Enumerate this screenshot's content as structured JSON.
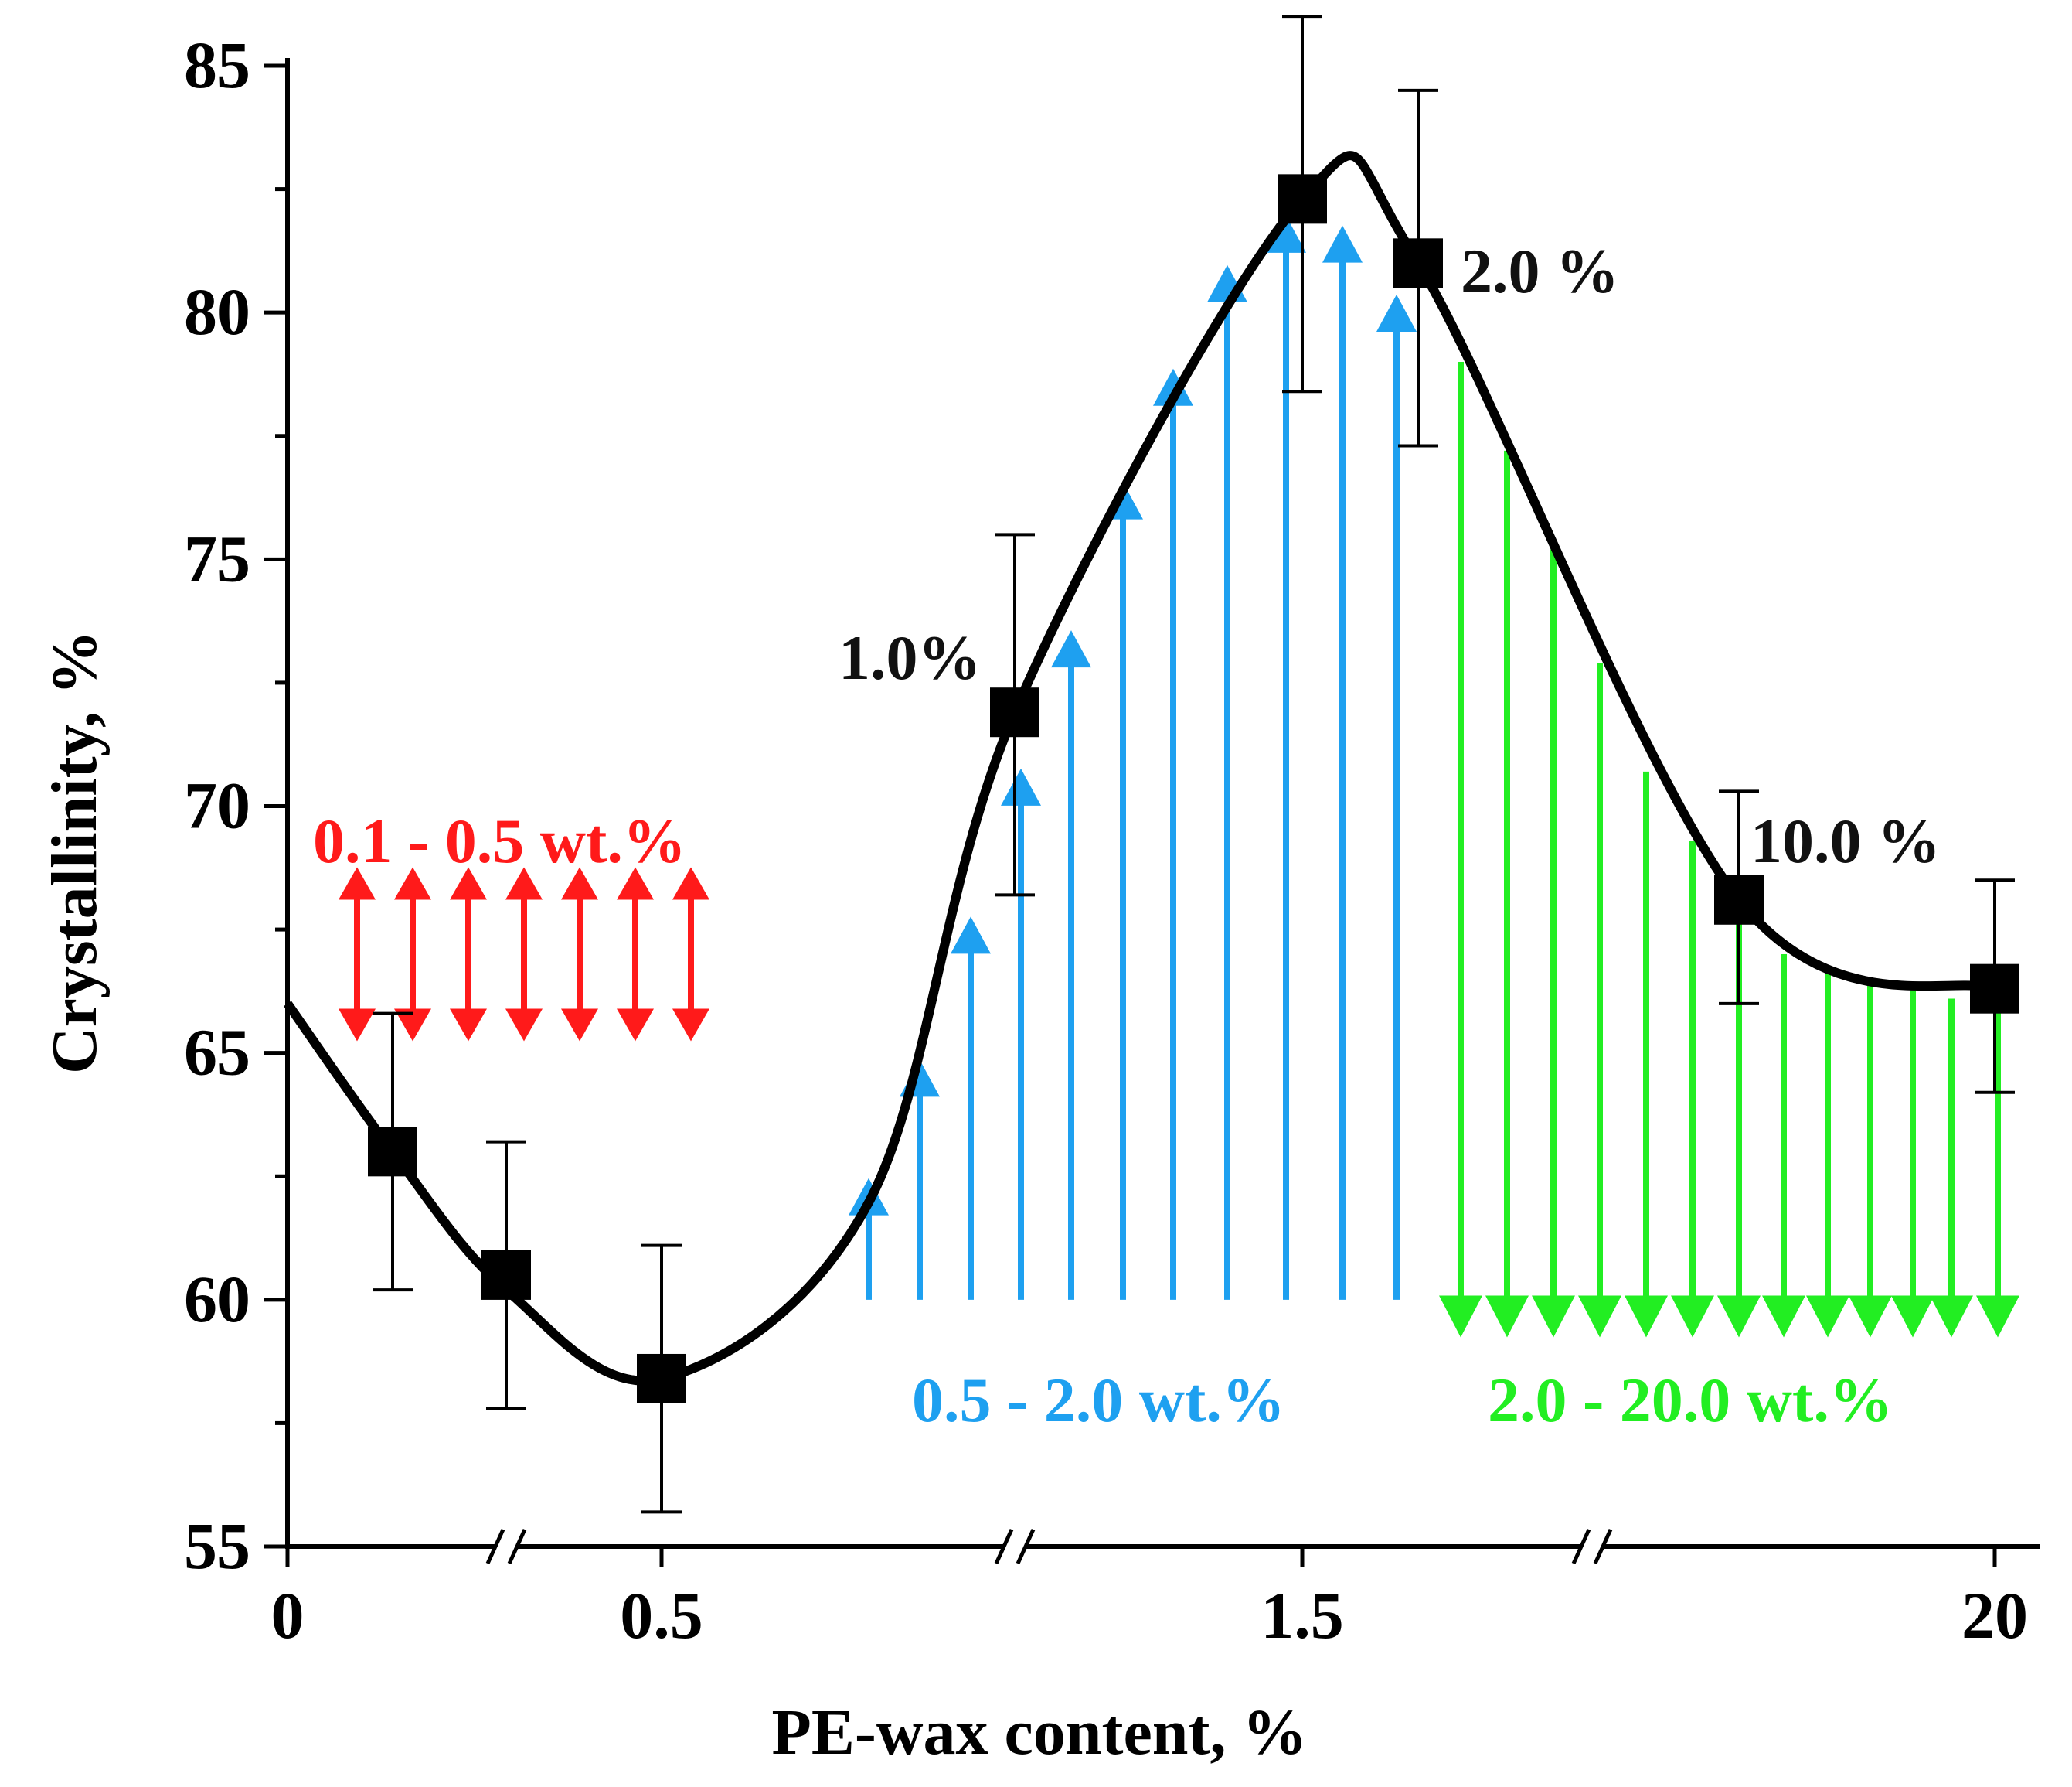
{
  "chart_data": {
    "type": "scatter",
    "title": "",
    "xlabel": "PE-wax content, %",
    "ylabel": "Crystallinity, %",
    "ylim": [
      55,
      85
    ],
    "y_ticks": [
      55,
      60,
      65,
      70,
      75,
      80,
      85
    ],
    "y_minor_step": 2.5,
    "x_axis_note": "broken axis, non-linear scale",
    "x_ticks": [
      {
        "label": "0",
        "x": 0
      },
      {
        "label": "0.5",
        "x": 0.5
      },
      {
        "label": "1.5",
        "x": 1.5
      },
      {
        "label": "20",
        "x": 20
      }
    ],
    "series": [
      {
        "name": "Crystallinity",
        "marker": "square",
        "color": "#000000",
        "points": [
          {
            "x": 0.1,
            "y": 63.0,
            "err_low": 60.2,
            "err_high": 65.8
          },
          {
            "x": 0.3,
            "y": 60.5,
            "err_low": 57.8,
            "err_high": 63.2
          },
          {
            "x": 0.5,
            "y": 58.4,
            "err_low": 55.7,
            "err_high": 61.1
          },
          {
            "x": 1.0,
            "y": 71.9,
            "err_low": 68.2,
            "err_high": 75.5
          },
          {
            "x": 1.5,
            "y": 82.3,
            "err_low": 78.4,
            "err_high": 86.0
          },
          {
            "x": 2.0,
            "y": 81.0,
            "err_low": 77.3,
            "err_high": 84.5
          },
          {
            "x": 10.0,
            "y": 68.1,
            "err_low": 66.0,
            "err_high": 70.3
          },
          {
            "x": 20.0,
            "y": 66.3,
            "err_low": 64.2,
            "err_high": 68.5
          }
        ],
        "trend_curve": [
          {
            "x": 0,
            "y": 66.0
          },
          {
            "x": 0.1,
            "y": 63.0
          },
          {
            "x": 0.3,
            "y": 60.2
          },
          {
            "x": 0.5,
            "y": 58.4
          },
          {
            "x": 0.7,
            "y": 62.0
          },
          {
            "x": 1.0,
            "y": 71.9
          },
          {
            "x": 1.5,
            "y": 82.3
          },
          {
            "x": 2.0,
            "y": 81.0
          },
          {
            "x": 10.0,
            "y": 68.1
          },
          {
            "x": 20.0,
            "y": 66.3
          }
        ]
      }
    ],
    "point_labels": [
      {
        "text": "1.0%",
        "x": 1.0
      },
      {
        "text": "2.0 %",
        "x": 2.0
      },
      {
        "text": "10.0 %",
        "x": 10.0
      }
    ],
    "regions": [
      {
        "label": "0.1 - 0.5 wt.%",
        "color": "#ff1a1a",
        "arrow": "double",
        "count": 7
      },
      {
        "label": "0.5 - 2.0 wt.%",
        "color": "#1ea0f0",
        "arrow": "up",
        "count": 11
      },
      {
        "label": "2.0 - 20.0 wt.%",
        "color": "#22ee22",
        "arrow": "down",
        "count": 13
      }
    ]
  }
}
